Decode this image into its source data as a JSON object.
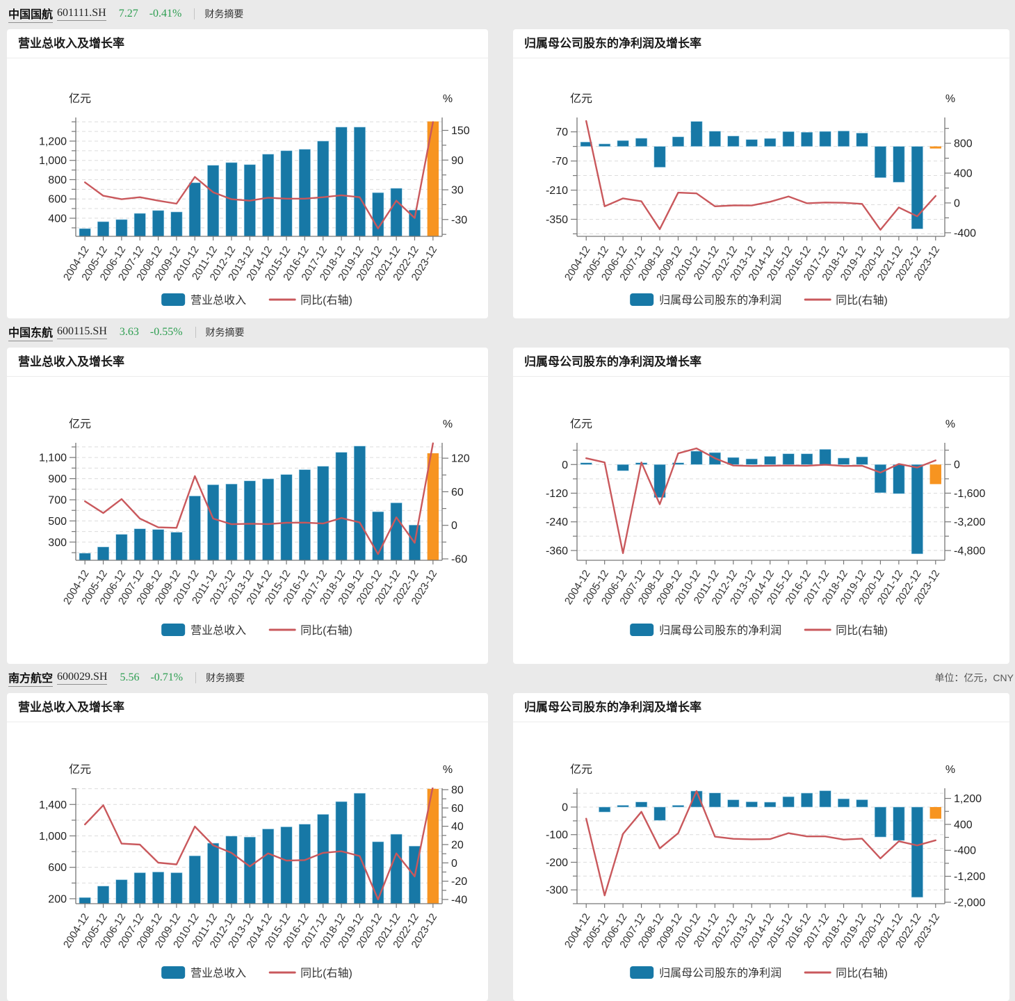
{
  "page": {
    "background": "#EAEAEA",
    "unit_note": "单位：亿元，CNY"
  },
  "colors": {
    "bar": "#1778A6",
    "bar_stroke": "#9fd0e8",
    "bar_highlight": "#F79420",
    "line": "#C9585C",
    "quote_green": "#2D9E51",
    "grid": "#dcdcdc",
    "axis": "#777777",
    "tick_text": "#222222",
    "x_text": "#333333"
  },
  "categories": [
    "2004-12",
    "2005-12",
    "2006-12",
    "2007-12",
    "2008-12",
    "2009-12",
    "2010-12",
    "2011-12",
    "2012-12",
    "2013-12",
    "2014-12",
    "2015-12",
    "2016-12",
    "2017-12",
    "2018-12",
    "2019-12",
    "2020-12",
    "2021-12",
    "2022-12",
    "2023-12"
  ],
  "stocks": [
    {
      "name": "中国国航",
      "code": "601111.SH",
      "price": "7.27",
      "change": "-0.41%",
      "summary_link": "财务摘要",
      "show_unit_note": false
    },
    {
      "name": "中国东航",
      "code": "600115.SH",
      "price": "3.63",
      "change": "-0.55%",
      "summary_link": "财务摘要",
      "show_unit_note": false
    },
    {
      "name": "南方航空",
      "code": "600029.SH",
      "price": "5.56",
      "change": "-0.71%",
      "summary_link": "财务摘要",
      "show_unit_note": true
    }
  ],
  "chart_data": [
    {
      "type": "bar+line",
      "title": "营业总收入及增长率",
      "bar_series": "营业总收入",
      "line_series": "同比(右轴)",
      "left_axis": {
        "title": "亿元",
        "min": 212,
        "max": 1445,
        "tick_labels": [
          400,
          600,
          800,
          1000,
          1200
        ],
        "minor_step": 100
      },
      "right_axis": {
        "title": "%",
        "min": -64,
        "max": 176,
        "tick_labels": [
          -30,
          30,
          90,
          150
        ],
        "minor_step": 30
      },
      "bars": [
        292,
        364,
        386,
        450,
        480,
        465,
        768,
        949,
        977,
        956,
        1064,
        1100,
        1115,
        1200,
        1345,
        1345,
        665,
        710,
        485,
        1404
      ],
      "line": [
        45,
        18,
        11,
        15,
        8,
        2,
        56,
        25,
        11,
        8,
        14,
        12,
        12,
        15,
        19,
        15,
        -48,
        8,
        -27,
        166.7
      ]
    },
    {
      "type": "bar+line",
      "title": "归属母公司股东的净利润及增长率",
      "bar_series": "归属母公司股东的净利润",
      "line_series": "同比(右轴)",
      "left_axis": {
        "title": "亿元",
        "min": -432,
        "max": 139,
        "tick_labels": [
          70,
          -70,
          -210,
          -350
        ],
        "minor_step": 70
      },
      "right_axis": {
        "title": "%",
        "min": -448,
        "max": 1146,
        "tick_labels": [
          800,
          400,
          0,
          -400
        ],
        "minor_step": 200
      },
      "bars": [
        21,
        12,
        28,
        39,
        -100,
        46,
        120,
        73,
        50,
        33,
        38,
        71,
        68,
        72,
        74,
        64,
        -150,
        -172,
        -396,
        -10
      ],
      "line": [
        1098,
        -45,
        61,
        22,
        -352,
        138,
        128,
        -45,
        -33,
        -34,
        15,
        87,
        -4,
        6,
        2,
        -13,
        -360,
        -60,
        -180,
        94
      ]
    },
    {
      "type": "bar+line",
      "title": "营业总收入及增长率",
      "bar_series": "营业总收入",
      "line_series": "同比(右轴)",
      "left_axis": {
        "title": "亿元",
        "min": 128,
        "max": 1239,
        "tick_labels": [
          300,
          500,
          700,
          900,
          1100
        ],
        "minor_step": 100
      },
      "right_axis": {
        "title": "%",
        "min": -62.5,
        "max": 147.5,
        "tick_labels": [
          -60,
          0,
          60,
          120
        ],
        "minor_step": 30
      },
      "bars": [
        195,
        254,
        373,
        426,
        419,
        393,
        736,
        842,
        849,
        879,
        898,
        939,
        985,
        1017,
        1149,
        1208,
        587,
        671,
        461,
        1140
      ],
      "line": [
        43,
        22,
        47,
        12,
        -3.6,
        -4.5,
        88,
        12,
        2,
        2.8,
        2.2,
        4.6,
        4.9,
        3.2,
        13,
        5.1,
        -51.5,
        14.3,
        -31.3,
        146.6
      ]
    },
    {
      "type": "bar+line",
      "title": "归属母公司股东的净利润及增长率",
      "bar_series": "归属母公司股东的净利润",
      "line_series": "同比(右轴)",
      "left_axis": {
        "title": "亿元",
        "min": -401,
        "max": 91,
        "tick_labels": [
          0,
          -120,
          -240,
          -360
        ],
        "minor_step": 60
      },
      "right_axis": {
        "title": "%",
        "min": -5346,
        "max": 1210,
        "tick_labels": [
          0,
          -1600,
          -3200,
          -4800
        ],
        "minor_step": 800
      },
      "bars": [
        3,
        0.6,
        -26,
        5.9,
        -138,
        1.7,
        56,
        50,
        29.5,
        23.7,
        34.1,
        45.1,
        45,
        63.5,
        27.1,
        32,
        -118,
        -122,
        -374,
        -82
      ],
      "line": [
        350,
        115,
        -4950,
        115,
        -2220,
        620,
        900,
        350,
        -60,
        -80,
        -70,
        -60,
        -70,
        -15,
        -80,
        -70,
        -450,
        30,
        -170,
        230
      ]
    },
    {
      "type": "bar+line",
      "title": "营业总收入及增长率",
      "bar_series": "营业总收入",
      "line_series": "同比(右轴)",
      "left_axis": {
        "title": "亿元",
        "min": 137,
        "max": 1606,
        "tick_labels": [
          200,
          600,
          1000,
          1400
        ],
        "minor_step": 200
      },
      "right_axis": {
        "title": "%",
        "min": -44.6,
        "max": 81.5,
        "tick_labels": [
          -40,
          -20,
          0,
          20,
          40,
          60,
          80
        ],
        "minor_step": 10
      },
      "bars": [
        215,
        361,
        442,
        531,
        540,
        531,
        746,
        907,
        997,
        985,
        1088,
        1115,
        1149,
        1274,
        1436,
        1543,
        925,
        1021,
        870,
        1599
      ],
      "line": [
        42,
        63,
        21,
        20,
        0.2,
        -1.7,
        39.7,
        19.2,
        10.9,
        -3.9,
        10.4,
        2.5,
        3,
        10.9,
        12.7,
        7.4,
        -40,
        10.4,
        -14.8,
        83.8
      ]
    },
    {
      "type": "bar+line",
      "title": "归属母公司股东的净利润及增长率",
      "bar_series": "归属母公司股东的净利润",
      "line_series": "同比(右轴)",
      "left_axis": {
        "title": "亿元",
        "min": -350,
        "max": 68,
        "tick_labels": [
          0,
          -100,
          -200,
          -300
        ],
        "minor_step": 50
      },
      "right_axis": {
        "title": "%",
        "min": -2045,
        "max": 1512,
        "tick_labels": [
          1200,
          400,
          -400,
          -1200,
          -2000
        ],
        "minor_step": 400
      },
      "bars": [
        -0.5,
        -17.9,
        1.9,
        18.4,
        -48.3,
        3.3,
        58,
        51.1,
        26.3,
        19,
        17.7,
        37.4,
        50.5,
        59.1,
        29.8,
        26.5,
        -108.4,
        -121,
        -326.8,
        -42.1
      ],
      "line": [
        575,
        -1790,
        106,
        788,
        -340,
        128,
        1427,
        21,
        -45,
        -60,
        -55,
        130,
        30,
        30,
        -70,
        -40,
        -650,
        -120,
        -250,
        -90
      ]
    }
  ]
}
